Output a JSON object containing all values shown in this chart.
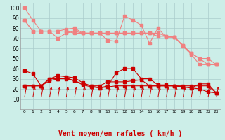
{
  "xlabel": "Vent moyen/en rafales ( km/h )",
  "hours": [
    0,
    1,
    2,
    3,
    4,
    5,
    6,
    7,
    8,
    9,
    10,
    11,
    12,
    13,
    14,
    15,
    16,
    17,
    18,
    19,
    20,
    21,
    22,
    23
  ],
  "line1": [
    100,
    88,
    77,
    77,
    77,
    79,
    80,
    75,
    75,
    75,
    68,
    67,
    92,
    88,
    83,
    65,
    80,
    71,
    71,
    62,
    54,
    44,
    44,
    44
  ],
  "line2": [
    88,
    77,
    77,
    77,
    70,
    75,
    77,
    75,
    75,
    75,
    75,
    75,
    75,
    75,
    75,
    75,
    72,
    72,
    71,
    63,
    55,
    50,
    44,
    44
  ],
  "line3": [
    88,
    77,
    77,
    77,
    77,
    77,
    75,
    75,
    75,
    75,
    75,
    75,
    75,
    75,
    75,
    75,
    75,
    72,
    71,
    63,
    55,
    50,
    50,
    44
  ],
  "line5": [
    38,
    35,
    23,
    30,
    33,
    32,
    31,
    26,
    23,
    21,
    23,
    36,
    40,
    40,
    30,
    30,
    24,
    24,
    23,
    22,
    21,
    25,
    25,
    16
  ],
  "line7": [
    23,
    23,
    23,
    30,
    30,
    31,
    28,
    25,
    23,
    23,
    27,
    27,
    27,
    28,
    29,
    23,
    23,
    23,
    23,
    23,
    23,
    23,
    23,
    16
  ],
  "line8": [
    23,
    23,
    23,
    28,
    30,
    30,
    28,
    24,
    22,
    21,
    22,
    23,
    23,
    23,
    23,
    23,
    23,
    23,
    23,
    22,
    21,
    20,
    17,
    16
  ],
  "color_light": "#f08080",
  "color_dark": "#cc0000",
  "bg_color": "#cceee8",
  "grid_color": "#aacccc",
  "ylim": [
    0,
    105
  ],
  "yticks": [
    10,
    20,
    30,
    40,
    50,
    60,
    70,
    80,
    90,
    100
  ]
}
